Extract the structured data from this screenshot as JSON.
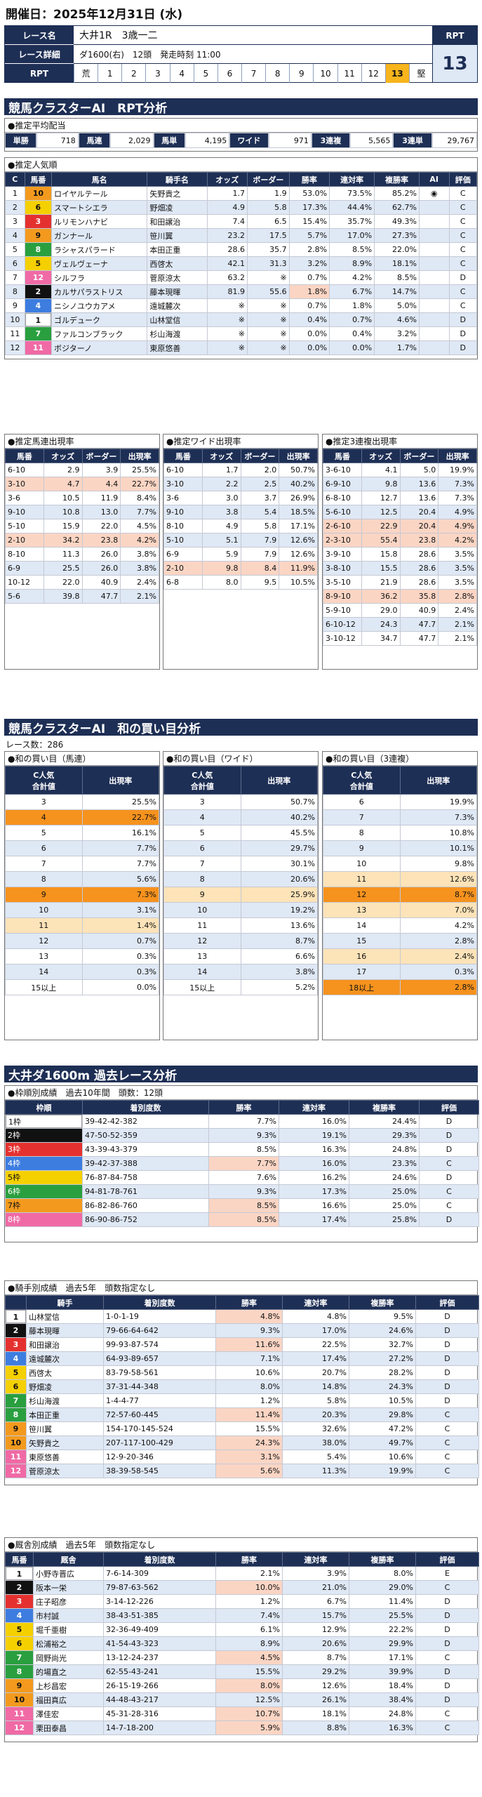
{
  "header": {
    "date": "開催日：2025年12月31日 (水)"
  },
  "race": {
    "name_label": "レース名",
    "name": "大井1R　3歳一二",
    "detail_label": "レース詳細",
    "detail": "ダ1600(右)　12頭　発走時刻 11:00",
    "rpt_label": "RPT",
    "rpt_scale": [
      "荒",
      "1",
      "2",
      "3",
      "4",
      "5",
      "6",
      "7",
      "8",
      "9",
      "10",
      "11",
      "12",
      "13",
      "堅"
    ],
    "rpt_right_label": "RPT",
    "rpt_value": "13"
  },
  "section1": {
    "title": "競馬クラスターAI　RPT分析"
  },
  "payout": {
    "caption": "●推定平均配当",
    "items": [
      {
        "k": "単勝",
        "v": "718"
      },
      {
        "k": "馬連",
        "v": "2,029"
      },
      {
        "k": "馬単",
        "v": "4,195"
      },
      {
        "k": "ワイド",
        "v": "971"
      },
      {
        "k": "3連複",
        "v": "5,565"
      },
      {
        "k": "3連単",
        "v": "29,767"
      }
    ]
  },
  "popularity": {
    "caption": "●推定人気順",
    "headers": [
      "C",
      "馬番",
      "馬名",
      "騎手名",
      "オッズ",
      "ボーダー",
      "勝率",
      "連対率",
      "複勝率",
      "AI",
      "評価"
    ],
    "rows": [
      [
        "1",
        "10",
        "ロイヤルテール",
        "矢野貴之",
        "1.7",
        "1.9",
        "53.0%",
        "73.5%",
        "85.2%",
        "◉",
        "C"
      ],
      [
        "2",
        "6",
        "スマートシエラ",
        "野畑凌",
        "4.9",
        "5.8",
        "17.3%",
        "44.4%",
        "62.7%",
        "",
        "C"
      ],
      [
        "3",
        "3",
        "ルリモンハナビ",
        "和田譲治",
        "7.4",
        "6.5",
        "15.4%",
        "35.7%",
        "49.3%",
        "",
        "C"
      ],
      [
        "4",
        "9",
        "ガンナール",
        "笹川翼",
        "23.2",
        "17.5",
        "5.7%",
        "17.0%",
        "27.3%",
        "",
        "C"
      ],
      [
        "5",
        "8",
        "ラシャスパラード",
        "本田正重",
        "28.6",
        "35.7",
        "2.8%",
        "8.5%",
        "22.0%",
        "",
        "C"
      ],
      [
        "6",
        "5",
        "ヴェルヴェーナ",
        "西啓太",
        "42.1",
        "31.3",
        "3.2%",
        "8.9%",
        "18.1%",
        "",
        "C"
      ],
      [
        "7",
        "12",
        "シルフラ",
        "菅原涼太",
        "63.2",
        "※",
        "0.7%",
        "4.2%",
        "8.5%",
        "",
        "D"
      ],
      [
        "8",
        "2",
        "カルサパラストリス",
        "藤本現暉",
        "81.9",
        "55.6",
        "1.8%",
        "6.7%",
        "14.7%",
        "",
        "C"
      ],
      [
        "9",
        "4",
        "ニシノユウカアメ",
        "遠城麓次",
        "※",
        "※",
        "0.7%",
        "1.8%",
        "5.0%",
        "",
        "C"
      ],
      [
        "10",
        "1",
        "ゴルデューク",
        "山林堂信",
        "※",
        "※",
        "0.4%",
        "0.7%",
        "4.6%",
        "",
        "D"
      ],
      [
        "11",
        "7",
        "ファルコンブラック",
        "杉山海渡",
        "※",
        "※",
        "0.0%",
        "0.4%",
        "3.2%",
        "",
        "D"
      ],
      [
        "12",
        "11",
        "ボジターノ",
        "東原悠善",
        "※",
        "※",
        "0.0%",
        "0.0%",
        "1.7%",
        "",
        "D"
      ]
    ]
  },
  "umaren": {
    "caption": "●推定馬連出現率",
    "headers": [
      "馬番",
      "オッズ",
      "ボーダー",
      "出現率"
    ],
    "rows": [
      [
        "6-10",
        "2.9",
        "3.9",
        "25.5%"
      ],
      [
        "3-10",
        "4.7",
        "4.4",
        "22.7%"
      ],
      [
        "3-6",
        "10.5",
        "11.9",
        "8.4%"
      ],
      [
        "9-10",
        "10.8",
        "13.0",
        "7.7%"
      ],
      [
        "5-10",
        "15.9",
        "22.0",
        "4.5%"
      ],
      [
        "2-10",
        "34.2",
        "23.8",
        "4.2%"
      ],
      [
        "8-10",
        "11.3",
        "26.0",
        "3.8%"
      ],
      [
        "6-9",
        "25.5",
        "26.0",
        "3.8%"
      ],
      [
        "10-12",
        "22.0",
        "40.9",
        "2.4%"
      ],
      [
        "5-6",
        "39.8",
        "47.7",
        "2.1%"
      ]
    ]
  },
  "wide": {
    "caption": "●推定ワイド出現率",
    "headers": [
      "馬番",
      "オッズ",
      "ボーダー",
      "出現率"
    ],
    "rows": [
      [
        "6-10",
        "1.7",
        "2.0",
        "50.7%"
      ],
      [
        "3-10",
        "2.2",
        "2.5",
        "40.2%"
      ],
      [
        "3-6",
        "3.0",
        "3.7",
        "26.9%"
      ],
      [
        "9-10",
        "3.8",
        "5.4",
        "18.5%"
      ],
      [
        "8-10",
        "4.9",
        "5.8",
        "17.1%"
      ],
      [
        "5-10",
        "5.1",
        "7.9",
        "12.6%"
      ],
      [
        "6-9",
        "5.9",
        "7.9",
        "12.6%"
      ],
      [
        "2-10",
        "9.8",
        "8.4",
        "11.9%"
      ],
      [
        "6-8",
        "8.0",
        "9.5",
        "10.5%"
      ]
    ]
  },
  "sanrenpuku": {
    "caption": "●推定3連複出現率",
    "headers": [
      "馬番",
      "オッズ",
      "ボーダー",
      "出現率"
    ],
    "rows": [
      [
        "3-6-10",
        "4.1",
        "5.0",
        "19.9%"
      ],
      [
        "6-9-10",
        "9.8",
        "13.6",
        "7.3%"
      ],
      [
        "6-8-10",
        "12.7",
        "13.6",
        "7.3%"
      ],
      [
        "5-6-10",
        "12.5",
        "20.4",
        "4.9%"
      ],
      [
        "2-6-10",
        "22.9",
        "20.4",
        "4.9%"
      ],
      [
        "2-3-10",
        "55.4",
        "23.8",
        "4.2%"
      ],
      [
        "3-9-10",
        "15.8",
        "28.6",
        "3.5%"
      ],
      [
        "3-8-10",
        "15.5",
        "28.6",
        "3.5%"
      ],
      [
        "3-5-10",
        "21.9",
        "28.6",
        "3.5%"
      ],
      [
        "8-9-10",
        "36.2",
        "35.8",
        "2.8%"
      ],
      [
        "5-9-10",
        "29.0",
        "40.9",
        "2.4%"
      ],
      [
        "6-10-12",
        "24.3",
        "47.7",
        "2.1%"
      ],
      [
        "3-10-12",
        "34.7",
        "47.7",
        "2.1%"
      ]
    ]
  },
  "section2": {
    "title": "競馬クラスターAI　和の買い目分析",
    "count": "レース数：286"
  },
  "wa_umaren": {
    "caption": "●和の買い目（馬連）",
    "headers": [
      "C人気\n合計値",
      "出現率"
    ],
    "rows": [
      [
        "3",
        "25.5%"
      ],
      [
        "4",
        "22.7%"
      ],
      [
        "5",
        "16.1%"
      ],
      [
        "6",
        "7.7%"
      ],
      [
        "7",
        "7.7%"
      ],
      [
        "8",
        "5.6%"
      ],
      [
        "9",
        "7.3%"
      ],
      [
        "10",
        "3.1%"
      ],
      [
        "11",
        "1.4%"
      ],
      [
        "12",
        "0.7%"
      ],
      [
        "13",
        "0.3%"
      ],
      [
        "14",
        "0.3%"
      ],
      [
        "15以上",
        "0.0%"
      ]
    ]
  },
  "wa_wide": {
    "caption": "●和の買い目（ワイド）",
    "headers": [
      "C人気\n合計値",
      "出現率"
    ],
    "rows": [
      [
        "3",
        "50.7%"
      ],
      [
        "4",
        "40.2%"
      ],
      [
        "5",
        "45.5%"
      ],
      [
        "6",
        "29.7%"
      ],
      [
        "7",
        "30.1%"
      ],
      [
        "8",
        "20.6%"
      ],
      [
        "9",
        "25.9%"
      ],
      [
        "10",
        "19.2%"
      ],
      [
        "11",
        "13.6%"
      ],
      [
        "12",
        "8.7%"
      ],
      [
        "13",
        "6.6%"
      ],
      [
        "14",
        "3.8%"
      ],
      [
        "15以上",
        "5.2%"
      ]
    ]
  },
  "wa_sanrenpuku": {
    "caption": "●和の買い目（3連複）",
    "headers": [
      "C人気\n合計値",
      "出現率"
    ],
    "rows": [
      [
        "6",
        "19.9%"
      ],
      [
        "7",
        "7.3%"
      ],
      [
        "8",
        "10.8%"
      ],
      [
        "9",
        "10.1%"
      ],
      [
        "10",
        "9.8%"
      ],
      [
        "11",
        "12.6%"
      ],
      [
        "12",
        "8.7%"
      ],
      [
        "13",
        "7.0%"
      ],
      [
        "14",
        "4.2%"
      ],
      [
        "15",
        "2.8%"
      ],
      [
        "16",
        "2.4%"
      ],
      [
        "17",
        "0.3%"
      ],
      [
        "18以上",
        "2.8%"
      ]
    ]
  },
  "section3": {
    "title": "大井ダ1600m 過去レース分析"
  },
  "waku": {
    "caption": "●枠順別成績　過去10年間　頭数：12頭",
    "headers": [
      "枠順",
      "着別度数",
      "勝率",
      "連対率",
      "複勝率",
      "評価"
    ],
    "rows": [
      [
        "1枠",
        "39-42-42-382",
        "7.7%",
        "16.0%",
        "24.4%",
        "D"
      ],
      [
        "2枠",
        "47-50-52-359",
        "9.3%",
        "19.1%",
        "29.3%",
        "D"
      ],
      [
        "3枠",
        "43-39-43-379",
        "8.5%",
        "16.3%",
        "24.8%",
        "D"
      ],
      [
        "4枠",
        "39-42-37-388",
        "7.7%",
        "16.0%",
        "23.3%",
        "C"
      ],
      [
        "5枠",
        "76-87-84-758",
        "7.6%",
        "16.2%",
        "24.6%",
        "D"
      ],
      [
        "6枠",
        "94-81-78-761",
        "9.3%",
        "17.3%",
        "25.0%",
        "C"
      ],
      [
        "7枠",
        "86-82-86-760",
        "8.5%",
        "16.6%",
        "25.0%",
        "C"
      ],
      [
        "8枠",
        "86-90-86-752",
        "8.5%",
        "17.4%",
        "25.8%",
        "D"
      ]
    ]
  },
  "jockey": {
    "caption": "●騎手別成績　過去5年　頭数指定なし",
    "headers": [
      "",
      "騎手",
      "着別度数",
      "勝率",
      "連対率",
      "複勝率",
      "評価"
    ],
    "rows": [
      [
        "1",
        "山林堂信",
        "1-0-1-19",
        "4.8%",
        "4.8%",
        "9.5%",
        "D"
      ],
      [
        "2",
        "藤本現暉",
        "79-66-64-642",
        "9.3%",
        "17.0%",
        "24.6%",
        "D"
      ],
      [
        "3",
        "和田譲治",
        "99-93-87-574",
        "11.6%",
        "22.5%",
        "32.7%",
        "D"
      ],
      [
        "4",
        "遠城麓次",
        "64-93-89-657",
        "7.1%",
        "17.4%",
        "27.2%",
        "D"
      ],
      [
        "5",
        "西啓太",
        "83-79-58-561",
        "10.6%",
        "20.7%",
        "28.2%",
        "D"
      ],
      [
        "6",
        "野畑凌",
        "37-31-44-348",
        "8.0%",
        "14.8%",
        "24.3%",
        "D"
      ],
      [
        "7",
        "杉山海渡",
        "1-4-4-77",
        "1.2%",
        "5.8%",
        "10.5%",
        "D"
      ],
      [
        "8",
        "本田正重",
        "72-57-60-445",
        "11.4%",
        "20.3%",
        "29.8%",
        "C"
      ],
      [
        "9",
        "笹川翼",
        "154-170-145-524",
        "15.5%",
        "32.6%",
        "47.2%",
        "C"
      ],
      [
        "10",
        "矢野貴之",
        "207-117-100-429",
        "24.3%",
        "38.0%",
        "49.7%",
        "C"
      ],
      [
        "11",
        "東原悠善",
        "12-9-20-346",
        "3.1%",
        "5.4%",
        "10.6%",
        "C"
      ],
      [
        "12",
        "菅原涼太",
        "38-39-58-545",
        "5.6%",
        "11.3%",
        "19.9%",
        "C"
      ]
    ]
  },
  "stable": {
    "caption": "●厩舎別成績　過去5年　頭数指定なし",
    "headers": [
      "馬番",
      "厩舎",
      "着別度数",
      "勝率",
      "連対率",
      "複勝率",
      "評価"
    ],
    "rows": [
      [
        "1",
        "小野寺晋広",
        "7-6-14-309",
        "2.1%",
        "3.9%",
        "8.0%",
        "E"
      ],
      [
        "2",
        "阪本一栄",
        "79-87-63-562",
        "10.0%",
        "21.0%",
        "29.0%",
        "C"
      ],
      [
        "3",
        "庄子昭彦",
        "3-14-12-226",
        "1.2%",
        "6.7%",
        "11.4%",
        "D"
      ],
      [
        "4",
        "市村誠",
        "38-43-51-385",
        "7.4%",
        "15.7%",
        "25.5%",
        "D"
      ],
      [
        "5",
        "堀千亜樹",
        "32-36-49-409",
        "6.1%",
        "12.9%",
        "22.2%",
        "D"
      ],
      [
        "6",
        "松浦裕之",
        "41-54-43-323",
        "8.9%",
        "20.6%",
        "29.9%",
        "D"
      ],
      [
        "7",
        "岡野尚光",
        "13-12-24-237",
        "4.5%",
        "8.7%",
        "17.1%",
        "C"
      ],
      [
        "8",
        "的場直之",
        "62-55-43-241",
        "15.5%",
        "29.2%",
        "39.9%",
        "D"
      ],
      [
        "9",
        "上杉昌宏",
        "26-15-19-266",
        "8.0%",
        "12.6%",
        "18.4%",
        "D"
      ],
      [
        "10",
        "福田真広",
        "44-48-43-217",
        "12.5%",
        "26.1%",
        "38.4%",
        "D"
      ],
      [
        "11",
        "澤佳宏",
        "45-31-28-316",
        "10.7%",
        "18.1%",
        "24.8%",
        "C"
      ],
      [
        "12",
        "栗田泰昌",
        "14-7-18-200",
        "5.9%",
        "8.8%",
        "16.3%",
        "C"
      ]
    ]
  },
  "colors": {
    "navy": "#1e2f55",
    "altrow": "#dfe8f5",
    "highlight": "#f6921e",
    "pink": "#fbd5c4"
  }
}
